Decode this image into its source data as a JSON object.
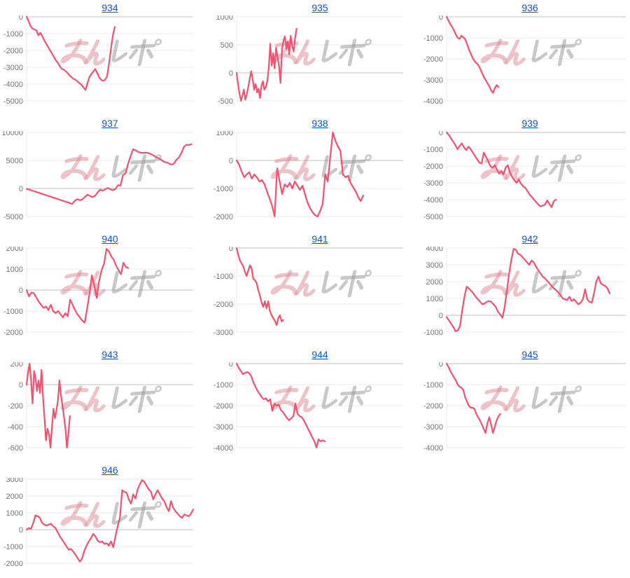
{
  "watermark": {
    "text": "みんレポ",
    "pink": "#dc8893",
    "gray": "#9a9a9a"
  },
  "styles": {
    "line_color": "#f3516d",
    "grid_color": "#e8e8e8",
    "zero_line_color": "#c2c2c2",
    "tick_color": "#757575",
    "link_color": "#1155cc",
    "background": "#ffffff"
  },
  "chart_data": [
    {
      "type": "line",
      "title": "934",
      "ylim": [
        -5000,
        0
      ],
      "yticks": [
        0,
        -1000,
        -2000,
        -3000,
        -4000,
        -5000
      ],
      "x_span": 0.53,
      "values": [
        0,
        -250,
        -550,
        -700,
        -750,
        -800,
        -1100,
        -950,
        -1150,
        -1400,
        -1600,
        -1800,
        -2000,
        -2200,
        -2400,
        -2600,
        -2750,
        -2950,
        -3100,
        -3150,
        -3250,
        -3350,
        -3500,
        -3600,
        -3700,
        -3750,
        -3850,
        -3950,
        -4050,
        -4200,
        -4350,
        -3950,
        -3600,
        -3400,
        -3250,
        -3100,
        -3350,
        -3600,
        -3750,
        -3800,
        -3750,
        -3550,
        -2800,
        -1900,
        -1100,
        -600
      ]
    },
    {
      "type": "line",
      "title": "935",
      "ylim": [
        -500,
        1000
      ],
      "yticks": [
        1000,
        500,
        0,
        -500
      ],
      "x_span": 0.36,
      "values": [
        0,
        -200,
        -380,
        -500,
        -400,
        -300,
        -480,
        -380,
        -250,
        -100,
        30,
        -120,
        -300,
        -200,
        -350,
        -280,
        -450,
        -230,
        -150,
        -300,
        -250,
        -150,
        100,
        520,
        130,
        350,
        80,
        450,
        280,
        120,
        -180,
        420,
        570,
        650,
        430,
        560,
        330,
        660,
        480,
        380,
        620,
        790
      ]
    },
    {
      "type": "line",
      "title": "936",
      "ylim": [
        -4000,
        0
      ],
      "yticks": [
        0,
        -1000,
        -2000,
        -3000,
        -4000
      ],
      "x_span": 0.29,
      "values": [
        0,
        -180,
        -350,
        -480,
        -650,
        -850,
        -1000,
        -1050,
        -900,
        -980,
        -1050,
        -1300,
        -1550,
        -1750,
        -1950,
        -2100,
        -2200,
        -2280,
        -2450,
        -2650,
        -2850,
        -3000,
        -3150,
        -3300,
        -3500,
        -3620,
        -3400,
        -3250,
        -3350
      ]
    },
    {
      "type": "line",
      "title": "937",
      "ylim": [
        -5000,
        10000
      ],
      "yticks": [
        10000,
        5000,
        0,
        -5000
      ],
      "x_span": 0.99,
      "values": [
        -100,
        -200,
        -350,
        -500,
        -650,
        -800,
        -950,
        -1100,
        -1250,
        -1400,
        -1550,
        -1700,
        -1850,
        -2000,
        -2150,
        -2300,
        -2450,
        -2600,
        -2750,
        -2200,
        -1900,
        -2100,
        -1950,
        -1500,
        -1100,
        -1350,
        -1550,
        -1300,
        -700,
        -200,
        -400,
        -150,
        100,
        -150,
        -300,
        -100,
        600,
        500,
        2400,
        2700,
        4400,
        5800,
        7000,
        6800,
        6500,
        6400,
        6350,
        6400,
        6300,
        6150,
        5900,
        5600,
        5400,
        5100,
        4800,
        4650,
        4500,
        4250,
        4400,
        5100,
        5500,
        6300,
        7400,
        7800,
        7750,
        7900
      ]
    },
    {
      "type": "line",
      "title": "938",
      "ylim": [
        -2000,
        1000
      ],
      "yticks": [
        1000,
        0,
        -1000,
        -2000
      ],
      "x_span": 0.76,
      "values": [
        0,
        -150,
        -400,
        -600,
        -500,
        -420,
        -650,
        -500,
        -600,
        -750,
        -700,
        -850,
        -1100,
        -1350,
        -1600,
        -2000,
        -280,
        -750,
        -1200,
        -850,
        -950,
        -800,
        -1000,
        -750,
        -900,
        -1050,
        -900,
        -1200,
        -1500,
        -1700,
        -1850,
        -1950,
        -2000,
        -1800,
        -1550,
        -500,
        -750,
        150,
        1000,
        700,
        500,
        350,
        -500,
        -600,
        -550,
        -800,
        -950,
        -1100,
        -1300,
        -1450,
        -1250
      ]
    },
    {
      "type": "line",
      "title": "939",
      "ylim": [
        -5000,
        0
      ],
      "yticks": [
        0,
        -1000,
        -2000,
        -3000,
        -4000,
        -5000
      ],
      "x_span": 0.61,
      "values": [
        0,
        -150,
        -350,
        -550,
        -750,
        -1000,
        -800,
        -650,
        -900,
        -1050,
        -850,
        -1000,
        -1200,
        -1400,
        -1600,
        -1800,
        -1850,
        -1200,
        -1450,
        -1700,
        -2000,
        -2100,
        -1950,
        -2200,
        -2450,
        -2300,
        -2500,
        -2100,
        -1950,
        -2400,
        -2650,
        -2850,
        -3000,
        -2800,
        -3050,
        -3200,
        -3300,
        -3500,
        -3700,
        -3850,
        -4000,
        -4150,
        -4300,
        -4400,
        -4350,
        -4300,
        -4050,
        -4250,
        -4450,
        -4100,
        -4000
      ]
    },
    {
      "type": "line",
      "title": "940",
      "ylim": [
        -2000,
        2000
      ],
      "yticks": [
        2000,
        1000,
        0,
        -1000,
        -2000
      ],
      "x_span": 0.61,
      "values": [
        0,
        -300,
        -120,
        -150,
        -350,
        -550,
        -700,
        -850,
        -780,
        -950,
        -700,
        -1000,
        -1100,
        -1000,
        -1150,
        -1300,
        -1100,
        -1250,
        -450,
        -700,
        -950,
        -1150,
        -1300,
        -1450,
        -1550,
        -900,
        -150,
        700,
        200,
        -380,
        450,
        950,
        1250,
        1950,
        1850,
        1600,
        1450,
        1150,
        950,
        750,
        1300,
        1100,
        1050
      ]
    },
    {
      "type": "line",
      "title": "941",
      "ylim": [
        -3000,
        0
      ],
      "yticks": [
        0,
        -1000,
        -2000,
        -3000
      ],
      "x_span": 0.28,
      "values": [
        0,
        -250,
        -450,
        -550,
        -650,
        -850,
        -1000,
        -800,
        -620,
        -720,
        -1100,
        -1150,
        -1250,
        -1500,
        -1700,
        -1950,
        -2100,
        -1900,
        -2150,
        -1900,
        -2250,
        -2400,
        -2500,
        -2600,
        -2750,
        -2500,
        -2400,
        -2620,
        -2570
      ]
    },
    {
      "type": "line",
      "title": "942",
      "ylim": [
        -1000,
        4000
      ],
      "yticks": [
        4000,
        3000,
        2000,
        1000,
        0,
        -1000
      ],
      "x_span": 0.91,
      "values": [
        -100,
        -300,
        -500,
        -700,
        -950,
        -900,
        -650,
        300,
        1100,
        1700,
        1600,
        1450,
        1300,
        1100,
        950,
        800,
        650,
        700,
        800,
        850,
        800,
        650,
        500,
        200,
        50,
        -150,
        500,
        1500,
        2500,
        3300,
        3950,
        3900,
        3650,
        3600,
        3450,
        3300,
        3150,
        3000,
        3250,
        3150,
        2900,
        2700,
        2500,
        2300,
        2200,
        2050,
        1900,
        1750,
        1600,
        1500,
        1350,
        1200,
        1000,
        950,
        900,
        1100,
        850,
        950,
        800,
        650,
        750,
        950,
        1550,
        950,
        800,
        750,
        1300,
        2000,
        2300,
        1900,
        1800,
        1750,
        1600,
        1300
      ]
    },
    {
      "type": "line",
      "title": "943",
      "ylim": [
        -600,
        200
      ],
      "yticks": [
        200,
        0,
        -200,
        -400,
        -600
      ],
      "x_span": 0.26,
      "values": [
        0,
        120,
        200,
        40,
        -180,
        130,
        60,
        -60,
        40,
        -80,
        140,
        -120,
        -320,
        -530,
        -420,
        -470,
        -600,
        -400,
        -230,
        -320,
        -240,
        -150,
        40,
        -100,
        -200,
        -300,
        -420,
        -600,
        -470,
        -300
      ]
    },
    {
      "type": "line",
      "title": "944",
      "ylim": [
        -4000,
        0
      ],
      "yticks": [
        0,
        -1000,
        -2000,
        -3000,
        -4000
      ],
      "x_span": 0.53,
      "values": [
        0,
        -200,
        -350,
        -500,
        -450,
        -400,
        -450,
        -600,
        -900,
        -1100,
        -1300,
        -1450,
        -1600,
        -1700,
        -1650,
        -1800,
        -1700,
        -2250,
        -1900,
        -2000,
        -1950,
        -2200,
        -2300,
        -2450,
        -2600,
        -2700,
        -2600,
        -2500,
        -1900,
        -2400,
        -2500,
        -2550,
        -2700,
        -2900,
        -3100,
        -3300,
        -3500,
        -3700,
        -4000,
        -3600,
        -3700,
        -3650,
        -3700
      ]
    },
    {
      "type": "line",
      "title": "945",
      "ylim": [
        -4000,
        0
      ],
      "yticks": [
        0,
        -1000,
        -2000,
        -3000,
        -4000
      ],
      "x_span": 0.3,
      "values": [
        0,
        -150,
        -350,
        -500,
        -650,
        -800,
        -1000,
        -1100,
        -1150,
        -1250,
        -1600,
        -1800,
        -2000,
        -2100,
        -2100,
        -2150,
        -2400,
        -2550,
        -2700,
        -2900,
        -3100,
        -3300,
        -2850,
        -2550,
        -2900,
        -3300,
        -3000,
        -2700,
        -2500,
        -2400
      ]
    },
    {
      "type": "line",
      "title": "946",
      "ylim": [
        -2000,
        3000
      ],
      "yticks": [
        3000,
        2000,
        1000,
        0,
        -1000,
        -2000
      ],
      "x_span": 1.0,
      "values": [
        0,
        100,
        50,
        400,
        850,
        800,
        700,
        400,
        300,
        250,
        300,
        350,
        200,
        100,
        -150,
        -400,
        -600,
        -800,
        -1000,
        -1200,
        -1150,
        -1300,
        -1500,
        -1700,
        -1900,
        -1700,
        -1250,
        -950,
        -700,
        -500,
        -250,
        -400,
        -650,
        -750,
        -700,
        -850,
        -800,
        -950,
        -700,
        -1050,
        -400,
        200,
        700,
        2350,
        2250,
        2200,
        1800,
        1550,
        2100,
        1850,
        2400,
        2700,
        2950,
        2850,
        2600,
        2400,
        2250,
        1800,
        2100,
        2350,
        2100,
        1850,
        1700,
        1350,
        1100,
        1700,
        1300,
        1100,
        950,
        800,
        700,
        900,
        850,
        800,
        950,
        1200
      ]
    }
  ]
}
